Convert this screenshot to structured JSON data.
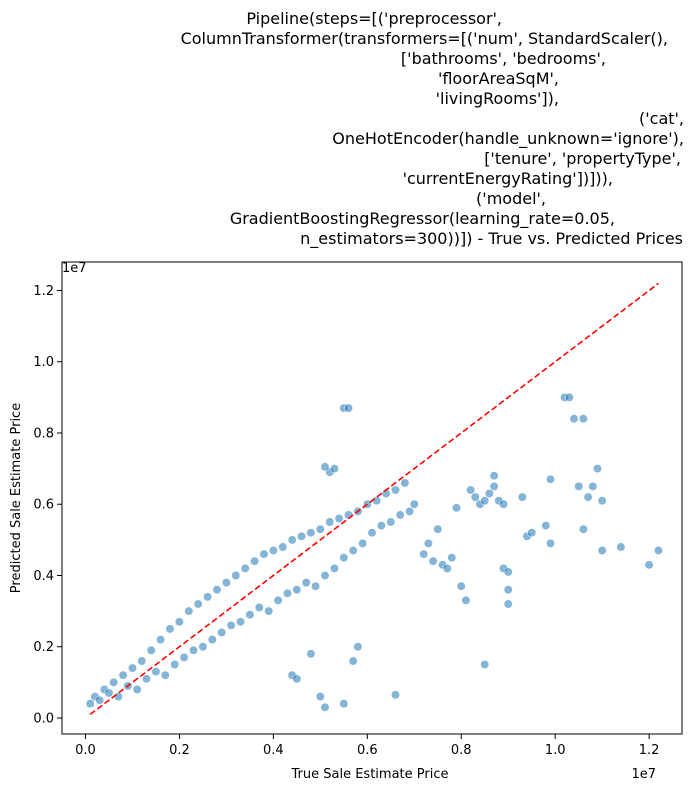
{
  "chart_data": {
    "type": "scatter",
    "title_lines": [
      "Pipeline(steps=[('preprocessor',",
      "ColumnTransformer(transformers=[('num', StandardScaler(),",
      "['bathrooms', 'bedrooms',",
      "'floorAreaSqM',",
      "'livingRooms']),",
      "('cat',",
      "OneHotEncoder(handle_unknown='ignore'),",
      "['tenure', 'propertyType',",
      "'currentEnergyRating'])])),",
      "('model',",
      "GradientBoostingRegressor(learning_rate=0.05,",
      "n_estimators=300))]) - True vs. Predicted Prices"
    ],
    "xlabel": "True Sale Estimate Price",
    "ylabel": "Predicted Sale Estimate Price",
    "x_scale_label": "1e7",
    "y_scale_label": "1e7",
    "xlim": [
      -0.05,
      1.27
    ],
    "ylim": [
      -0.045,
      1.28
    ],
    "x_ticks": [
      0.0,
      0.2,
      0.4,
      0.6,
      0.8,
      1.0,
      1.2
    ],
    "x_tick_labels": [
      "0.0",
      "0.2",
      "0.4",
      "0.6",
      "0.8",
      "1.0",
      "1.2"
    ],
    "y_ticks": [
      0.0,
      0.2,
      0.4,
      0.6,
      0.8,
      1.0,
      1.2
    ],
    "y_tick_labels": [
      "0.0",
      "0.2",
      "0.4",
      "0.6",
      "0.8",
      "1.0",
      "1.2"
    ],
    "grid": false,
    "point_color": "#1f77b4",
    "line_color": "#ff0000",
    "reference_line": {
      "x": [
        0.01,
        1.22
      ],
      "y": [
        0.01,
        1.22
      ],
      "style": "dashed"
    },
    "points": [
      [
        0.01,
        0.04
      ],
      [
        0.02,
        0.06
      ],
      [
        0.03,
        0.05
      ],
      [
        0.04,
        0.08
      ],
      [
        0.05,
        0.07
      ],
      [
        0.06,
        0.1
      ],
      [
        0.07,
        0.06
      ],
      [
        0.08,
        0.12
      ],
      [
        0.09,
        0.09
      ],
      [
        0.1,
        0.14
      ],
      [
        0.11,
        0.08
      ],
      [
        0.12,
        0.16
      ],
      [
        0.13,
        0.11
      ],
      [
        0.14,
        0.19
      ],
      [
        0.15,
        0.13
      ],
      [
        0.16,
        0.22
      ],
      [
        0.17,
        0.12
      ],
      [
        0.18,
        0.25
      ],
      [
        0.19,
        0.15
      ],
      [
        0.2,
        0.27
      ],
      [
        0.21,
        0.17
      ],
      [
        0.22,
        0.3
      ],
      [
        0.23,
        0.19
      ],
      [
        0.24,
        0.32
      ],
      [
        0.25,
        0.2
      ],
      [
        0.26,
        0.34
      ],
      [
        0.27,
        0.22
      ],
      [
        0.28,
        0.36
      ],
      [
        0.29,
        0.24
      ],
      [
        0.3,
        0.38
      ],
      [
        0.31,
        0.26
      ],
      [
        0.32,
        0.4
      ],
      [
        0.33,
        0.27
      ],
      [
        0.34,
        0.42
      ],
      [
        0.35,
        0.29
      ],
      [
        0.36,
        0.44
      ],
      [
        0.37,
        0.31
      ],
      [
        0.38,
        0.46
      ],
      [
        0.39,
        0.3
      ],
      [
        0.4,
        0.47
      ],
      [
        0.41,
        0.33
      ],
      [
        0.42,
        0.48
      ],
      [
        0.43,
        0.35
      ],
      [
        0.44,
        0.5
      ],
      [
        0.45,
        0.36
      ],
      [
        0.46,
        0.51
      ],
      [
        0.47,
        0.38
      ],
      [
        0.48,
        0.52
      ],
      [
        0.49,
        0.37
      ],
      [
        0.5,
        0.53
      ],
      [
        0.51,
        0.4
      ],
      [
        0.52,
        0.55
      ],
      [
        0.53,
        0.42
      ],
      [
        0.54,
        0.56
      ],
      [
        0.55,
        0.45
      ],
      [
        0.56,
        0.57
      ],
      [
        0.57,
        0.47
      ],
      [
        0.58,
        0.58
      ],
      [
        0.59,
        0.49
      ],
      [
        0.6,
        0.6
      ],
      [
        0.61,
        0.52
      ],
      [
        0.62,
        0.61
      ],
      [
        0.63,
        0.54
      ],
      [
        0.64,
        0.63
      ],
      [
        0.65,
        0.55
      ],
      [
        0.66,
        0.64
      ],
      [
        0.67,
        0.57
      ],
      [
        0.68,
        0.66
      ],
      [
        0.69,
        0.58
      ],
      [
        0.7,
        0.6
      ],
      [
        0.52,
        0.69
      ],
      [
        0.53,
        0.7
      ],
      [
        0.51,
        0.705
      ],
      [
        0.55,
        0.87
      ],
      [
        0.56,
        0.87
      ],
      [
        0.5,
        0.06
      ],
      [
        0.51,
        0.03
      ],
      [
        0.55,
        0.04
      ],
      [
        0.66,
        0.065
      ],
      [
        0.48,
        0.18
      ],
      [
        0.57,
        0.16
      ],
      [
        0.58,
        0.2
      ],
      [
        0.44,
        0.12
      ],
      [
        0.45,
        0.11
      ],
      [
        0.72,
        0.46
      ],
      [
        0.74,
        0.44
      ],
      [
        0.76,
        0.43
      ],
      [
        0.78,
        0.45
      ],
      [
        0.8,
        0.37
      ],
      [
        0.81,
        0.33
      ],
      [
        0.77,
        0.42
      ],
      [
        0.73,
        0.49
      ],
      [
        0.75,
        0.53
      ],
      [
        0.79,
        0.59
      ],
      [
        0.83,
        0.62
      ],
      [
        0.86,
        0.63
      ],
      [
        0.87,
        0.65
      ],
      [
        0.84,
        0.6
      ],
      [
        0.82,
        0.64
      ],
      [
        0.85,
        0.61
      ],
      [
        0.88,
        0.61
      ],
      [
        0.89,
        0.42
      ],
      [
        0.9,
        0.41
      ],
      [
        0.9,
        0.32
      ],
      [
        0.9,
        0.36
      ],
      [
        0.85,
        0.15
      ],
      [
        0.89,
        0.6
      ],
      [
        0.87,
        0.68
      ],
      [
        0.93,
        0.62
      ],
      [
        0.94,
        0.51
      ],
      [
        0.95,
        0.52
      ],
      [
        0.98,
        0.54
      ],
      [
        0.99,
        0.49
      ],
      [
        0.99,
        0.67
      ],
      [
        1.02,
        0.9
      ],
      [
        1.03,
        0.9
      ],
      [
        1.04,
        0.84
      ],
      [
        1.06,
        0.84
      ],
      [
        1.05,
        0.65
      ],
      [
        1.06,
        0.53
      ],
      [
        1.07,
        0.62
      ],
      [
        1.08,
        0.65
      ],
      [
        1.09,
        0.7
      ],
      [
        1.1,
        0.61
      ],
      [
        1.1,
        0.47
      ],
      [
        1.14,
        0.48
      ],
      [
        1.2,
        0.43
      ],
      [
        1.22,
        0.47
      ]
    ]
  }
}
